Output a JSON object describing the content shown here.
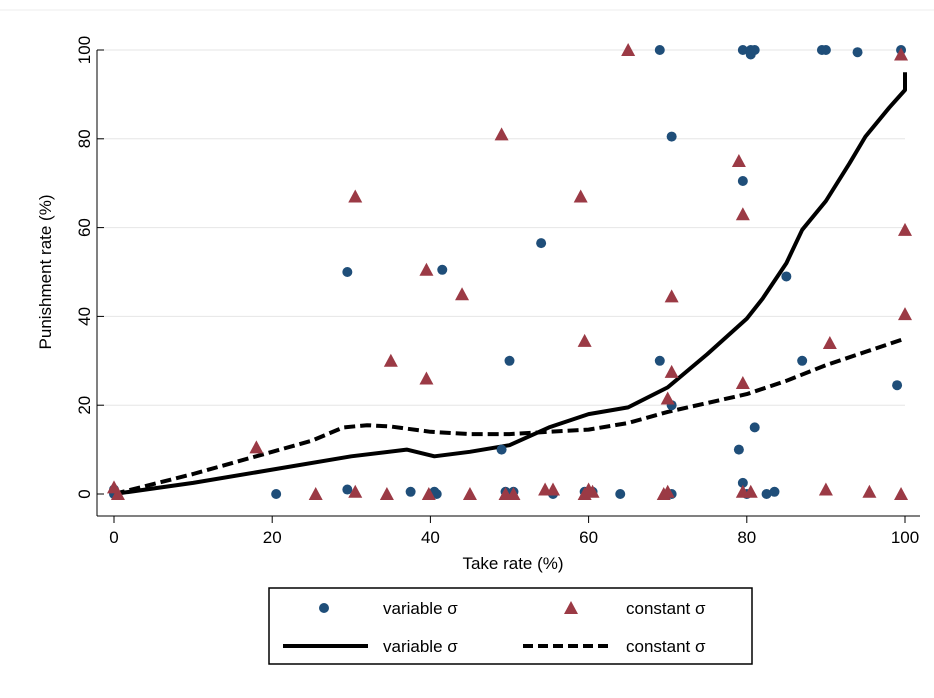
{
  "chart_data": {
    "type": "scatter",
    "title": "",
    "xlabel": "Take rate (%)",
    "ylabel": "Punishment rate (%)",
    "xlim": [
      0,
      100
    ],
    "ylim": [
      0,
      100
    ],
    "xticks": [
      "0",
      "20",
      "40",
      "60",
      "80",
      "100"
    ],
    "yticks": [
      "0",
      "20",
      "40",
      "60",
      "80",
      "100"
    ],
    "grid": "horizontal",
    "legend_position": "bottom",
    "colors": {
      "variable_points": "#1f4e79",
      "constant_points": "#9b3a45",
      "lines": "#000000",
      "grid": "#e6e6e6"
    },
    "series": [
      {
        "name": "variable σ",
        "kind": "points",
        "marker": "circle",
        "points": [
          [
            0,
            0
          ],
          [
            0,
            1
          ],
          [
            20.5,
            0
          ],
          [
            29.5,
            1
          ],
          [
            29.5,
            50
          ],
          [
            37.5,
            0.5
          ],
          [
            40.5,
            0.5
          ],
          [
            40.8,
            0
          ],
          [
            41.5,
            50.5
          ],
          [
            49,
            10
          ],
          [
            49.5,
            0.5
          ],
          [
            50,
            0
          ],
          [
            50,
            30
          ],
          [
            50.5,
            0.5
          ],
          [
            54,
            56.5
          ],
          [
            55.5,
            0
          ],
          [
            59.5,
            0.5
          ],
          [
            60.5,
            0.5
          ],
          [
            64,
            0
          ],
          [
            69,
            30
          ],
          [
            69,
            100
          ],
          [
            70.5,
            0
          ],
          [
            70.5,
            20
          ],
          [
            70.5,
            80.5
          ],
          [
            79,
            10
          ],
          [
            79.5,
            2.5
          ],
          [
            79.5,
            70.5
          ],
          [
            79.5,
            100
          ],
          [
            80,
            0
          ],
          [
            80.5,
            100
          ],
          [
            80.5,
            99
          ],
          [
            81,
            15
          ],
          [
            81,
            100
          ],
          [
            82.5,
            0
          ],
          [
            83.5,
            0.5
          ],
          [
            85,
            49
          ],
          [
            87,
            30
          ],
          [
            89.5,
            100
          ],
          [
            90,
            100
          ],
          [
            94,
            99.5
          ],
          [
            99,
            24.5
          ],
          [
            99.5,
            100
          ]
        ]
      },
      {
        "name": "constant σ",
        "kind": "points",
        "marker": "triangle",
        "points": [
          [
            0,
            1.5
          ],
          [
            0.5,
            0
          ],
          [
            18,
            10.5
          ],
          [
            25.5,
            0
          ],
          [
            30.5,
            67
          ],
          [
            30.5,
            0.5
          ],
          [
            34.5,
            0
          ],
          [
            35,
            30
          ],
          [
            39.5,
            26
          ],
          [
            39.5,
            50.5
          ],
          [
            39.8,
            0
          ],
          [
            44,
            45
          ],
          [
            45,
            0
          ],
          [
            49,
            81
          ],
          [
            49.5,
            0
          ],
          [
            50.5,
            0
          ],
          [
            54.5,
            1
          ],
          [
            55.5,
            1
          ],
          [
            59,
            67
          ],
          [
            59.5,
            34.5
          ],
          [
            59.5,
            0
          ],
          [
            60,
            1
          ],
          [
            60.5,
            0.5
          ],
          [
            65,
            100
          ],
          [
            69.5,
            0
          ],
          [
            70,
            0.5
          ],
          [
            70,
            21.5
          ],
          [
            70.5,
            44.5
          ],
          [
            70.5,
            27.5
          ],
          [
            79,
            75
          ],
          [
            79.5,
            25
          ],
          [
            79.5,
            63
          ],
          [
            79.5,
            0.5
          ],
          [
            80.5,
            0.5
          ],
          [
            90,
            1
          ],
          [
            90.5,
            34
          ],
          [
            95.5,
            0.5
          ],
          [
            99.5,
            0
          ],
          [
            99.5,
            99
          ],
          [
            100,
            40.5
          ],
          [
            100,
            59.5
          ]
        ]
      },
      {
        "name": "variable σ",
        "kind": "line",
        "style": "solid",
        "points": [
          [
            0,
            0
          ],
          [
            10,
            2.5
          ],
          [
            20,
            5.5
          ],
          [
            30,
            8.5
          ],
          [
            37,
            10
          ],
          [
            40.5,
            8.5
          ],
          [
            45,
            9.5
          ],
          [
            50,
            11
          ],
          [
            55,
            15
          ],
          [
            60,
            18
          ],
          [
            65,
            19.5
          ],
          [
            70,
            24
          ],
          [
            75,
            31.5
          ],
          [
            80,
            39.5
          ],
          [
            82,
            44
          ],
          [
            85,
            52
          ],
          [
            87,
            59.5
          ],
          [
            90,
            66
          ],
          [
            93,
            74.5
          ],
          [
            95,
            80.5
          ],
          [
            98,
            87
          ],
          [
            100,
            91
          ],
          [
            100,
            95
          ]
        ]
      },
      {
        "name": "constant σ",
        "kind": "line",
        "style": "dashed",
        "points": [
          [
            0,
            0
          ],
          [
            10,
            4.5
          ],
          [
            20,
            9.5
          ],
          [
            25,
            12
          ],
          [
            29,
            15
          ],
          [
            32,
            15.5
          ],
          [
            35,
            15.2
          ],
          [
            40,
            14
          ],
          [
            45,
            13.5
          ],
          [
            50,
            13.5
          ],
          [
            55,
            14
          ],
          [
            60,
            14.5
          ],
          [
            65,
            16
          ],
          [
            70,
            18.5
          ],
          [
            75,
            20.5
          ],
          [
            80,
            22.5
          ],
          [
            85,
            25.5
          ],
          [
            90,
            29
          ],
          [
            95,
            32
          ],
          [
            100,
            35
          ]
        ]
      }
    ]
  },
  "legend": {
    "items": [
      {
        "label": "variable σ",
        "symbol": "circle"
      },
      {
        "label": "constant σ",
        "symbol": "triangle"
      },
      {
        "label": "variable σ",
        "symbol": "solid-line"
      },
      {
        "label": "constant σ",
        "symbol": "dashed-line"
      }
    ]
  }
}
